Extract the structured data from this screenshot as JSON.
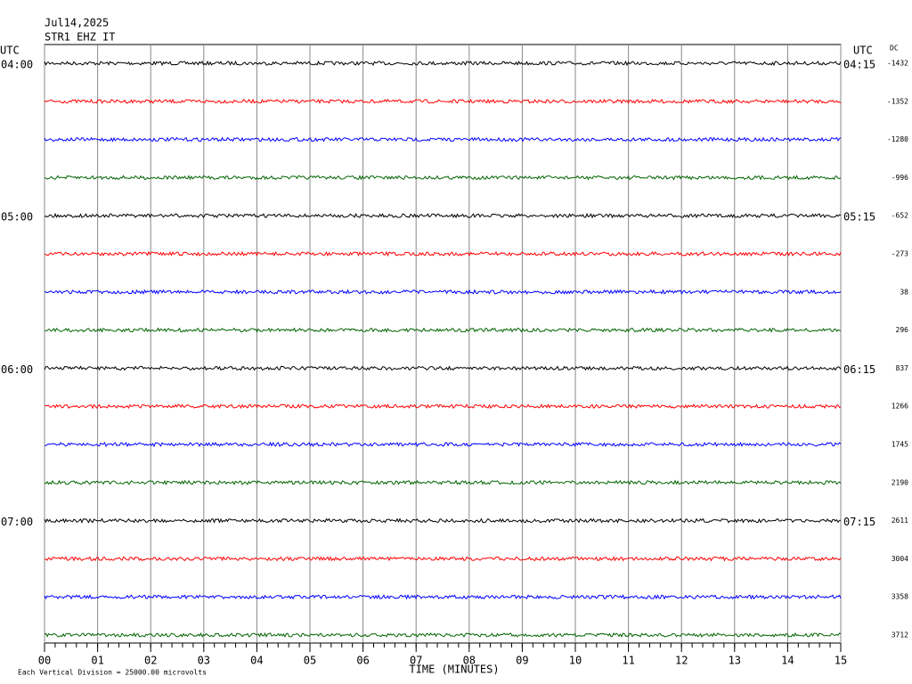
{
  "chart_data": {
    "type": "helicorder",
    "title": "Jul14,2025",
    "subtitle": "STR1 EHZ IT",
    "left_axis_label": "UTC",
    "right_axis_label": "UTC",
    "dc_label": "DC",
    "xlabel": "TIME (MINUTES)",
    "footnote": "Each Vertical Division = 25000.00 microvolts",
    "xlim": [
      0,
      15
    ],
    "xticks": [
      {
        "value": 0,
        "label": "00"
      },
      {
        "value": 1,
        "label": "01"
      },
      {
        "value": 2,
        "label": "02"
      },
      {
        "value": 3,
        "label": "03"
      },
      {
        "value": 4,
        "label": "04"
      },
      {
        "value": 5,
        "label": "05"
      },
      {
        "value": 6,
        "label": "06"
      },
      {
        "value": 7,
        "label": "07"
      },
      {
        "value": 8,
        "label": "08"
      },
      {
        "value": 9,
        "label": "09"
      },
      10,
      11,
      12,
      13,
      14,
      15
    ],
    "grid": true,
    "rows": [
      {
        "color": "#000000",
        "left_label": "04:00",
        "right_label": "04:15",
        "dc": -1432
      },
      {
        "color": "#ff0000",
        "left_label": null,
        "right_label": null,
        "dc": -1352
      },
      {
        "color": "#0000ff",
        "left_label": null,
        "right_label": null,
        "dc": -1280
      },
      {
        "color": "#006400",
        "left_label": null,
        "right_label": null,
        "dc": -996
      },
      {
        "color": "#000000",
        "left_label": "05:00",
        "right_label": "05:15",
        "dc": -652
      },
      {
        "color": "#ff0000",
        "left_label": null,
        "right_label": null,
        "dc": -273
      },
      {
        "color": "#0000ff",
        "left_label": null,
        "right_label": null,
        "dc": 38
      },
      {
        "color": "#006400",
        "left_label": null,
        "right_label": null,
        "dc": 296
      },
      {
        "color": "#000000",
        "left_label": "06:00",
        "right_label": "06:15",
        "dc": 837
      },
      {
        "color": "#ff0000",
        "left_label": null,
        "right_label": null,
        "dc": 1266
      },
      {
        "color": "#0000ff",
        "left_label": null,
        "right_label": null,
        "dc": 1745
      },
      {
        "color": "#006400",
        "left_label": null,
        "right_label": null,
        "dc": 2190
      },
      {
        "color": "#000000",
        "left_label": "07:00",
        "right_label": "07:15",
        "dc": 2611
      },
      {
        "color": "#ff0000",
        "left_label": null,
        "right_label": null,
        "dc": 3004
      },
      {
        "color": "#0000ff",
        "left_label": null,
        "right_label": null,
        "dc": 3358
      },
      {
        "color": "#006400",
        "left_label": null,
        "right_label": null,
        "dc": 3712
      }
    ]
  }
}
